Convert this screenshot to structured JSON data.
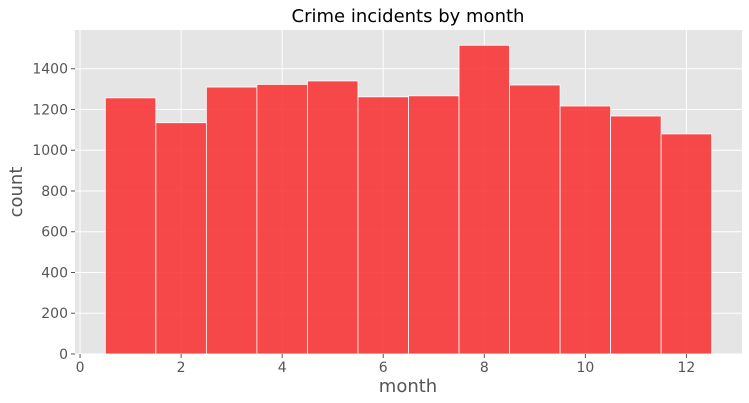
{
  "chart_data": {
    "type": "bar",
    "title": "Crime incidents by month",
    "xlabel": "month",
    "ylabel": "count",
    "categories": [
      1,
      2,
      3,
      4,
      5,
      6,
      7,
      8,
      9,
      10,
      11,
      12
    ],
    "values": [
      1257,
      1135,
      1310,
      1323,
      1340,
      1262,
      1267,
      1515,
      1320,
      1217,
      1168,
      1080
    ],
    "xlim": [
      -0.1,
      13.1
    ],
    "ylim": [
      0,
      1590
    ],
    "xticks": [
      0,
      2,
      4,
      6,
      8,
      10,
      12
    ],
    "yticks": [
      0,
      200,
      400,
      600,
      800,
      1000,
      1200,
      1400
    ],
    "grid": true,
    "legend": "none",
    "bar_color": "#f83232",
    "background_color": "#e5e5e5",
    "grid_color": "#ffffff"
  }
}
